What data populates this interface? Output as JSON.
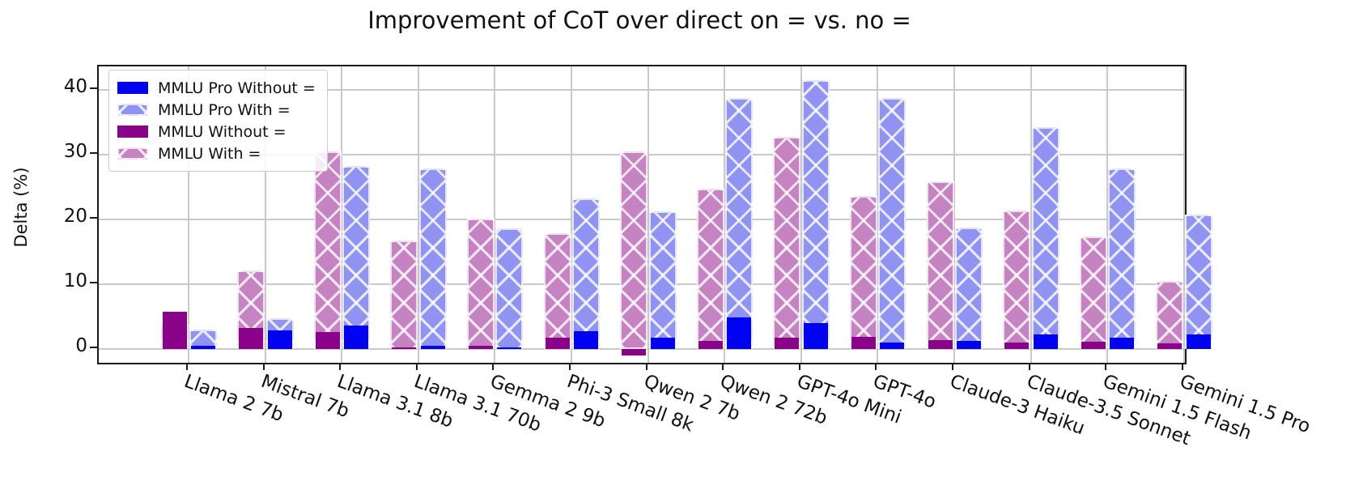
{
  "chart_data": {
    "type": "bar",
    "title": "Improvement of CoT over direct on = vs. no =",
    "xlabel": "",
    "ylabel": "Delta (%)",
    "yticks": [
      0,
      10,
      20,
      30,
      40
    ],
    "ylim": [
      -2,
      43.7
    ],
    "grid": true,
    "legend_position": "upper left",
    "categories": [
      "Llama 2 7b",
      "Mistral 7b",
      "Llama 3.1 8b",
      "Llama 3.1 70b",
      "Gemma 2 9b",
      "Phi-3 Small 8k",
      "Qwen 2 7b",
      "Qwen 2 72b",
      "GPT-4o Mini",
      "GPT-4o",
      "Claude-3 Haiku",
      "Claude-3.5 Sonnet",
      "Gemini 1.5 Flash",
      "Gemini 1.5 Pro"
    ],
    "series": [
      {
        "name": "MMLU Pro Without =",
        "style": "solid-blue",
        "group": "pro",
        "values": [
          0.5,
          2.9,
          3.6,
          0.5,
          0.3,
          2.8,
          1.8,
          4.9,
          4.0,
          1.0,
          1.3,
          2.2,
          1.8,
          2.3
        ]
      },
      {
        "name": "MMLU Pro With =",
        "style": "hatch-blue",
        "group": "pro",
        "values": [
          3.0,
          4.7,
          28.3,
          27.9,
          18.6,
          23.3,
          21.3,
          38.8,
          41.5,
          38.7,
          18.7,
          34.2,
          27.9,
          20.8
        ]
      },
      {
        "name": "MMLU Without =",
        "style": "solid-purple",
        "group": "mmlu",
        "values": [
          5.8,
          3.3,
          2.6,
          0.2,
          0.5,
          1.7,
          -1.0,
          1.2,
          1.8,
          1.9,
          1.4,
          1.0,
          1.1,
          0.9
        ]
      },
      {
        "name": "MMLU With =",
        "style": "hatch-pink",
        "group": "mmlu",
        "values": [
          3.7,
          12.1,
          30.5,
          16.8,
          20.1,
          17.9,
          30.5,
          24.8,
          32.7,
          23.6,
          25.9,
          21.4,
          17.4,
          10.5
        ]
      }
    ],
    "colors": {
      "solid_blue": "#0202f2",
      "hatch_blue": "#9093f1",
      "solid_purple": "#8a018a",
      "hatch_pink": "#c583c2",
      "grid": "#c9c9c9",
      "axis": "#1a1a1a"
    }
  }
}
